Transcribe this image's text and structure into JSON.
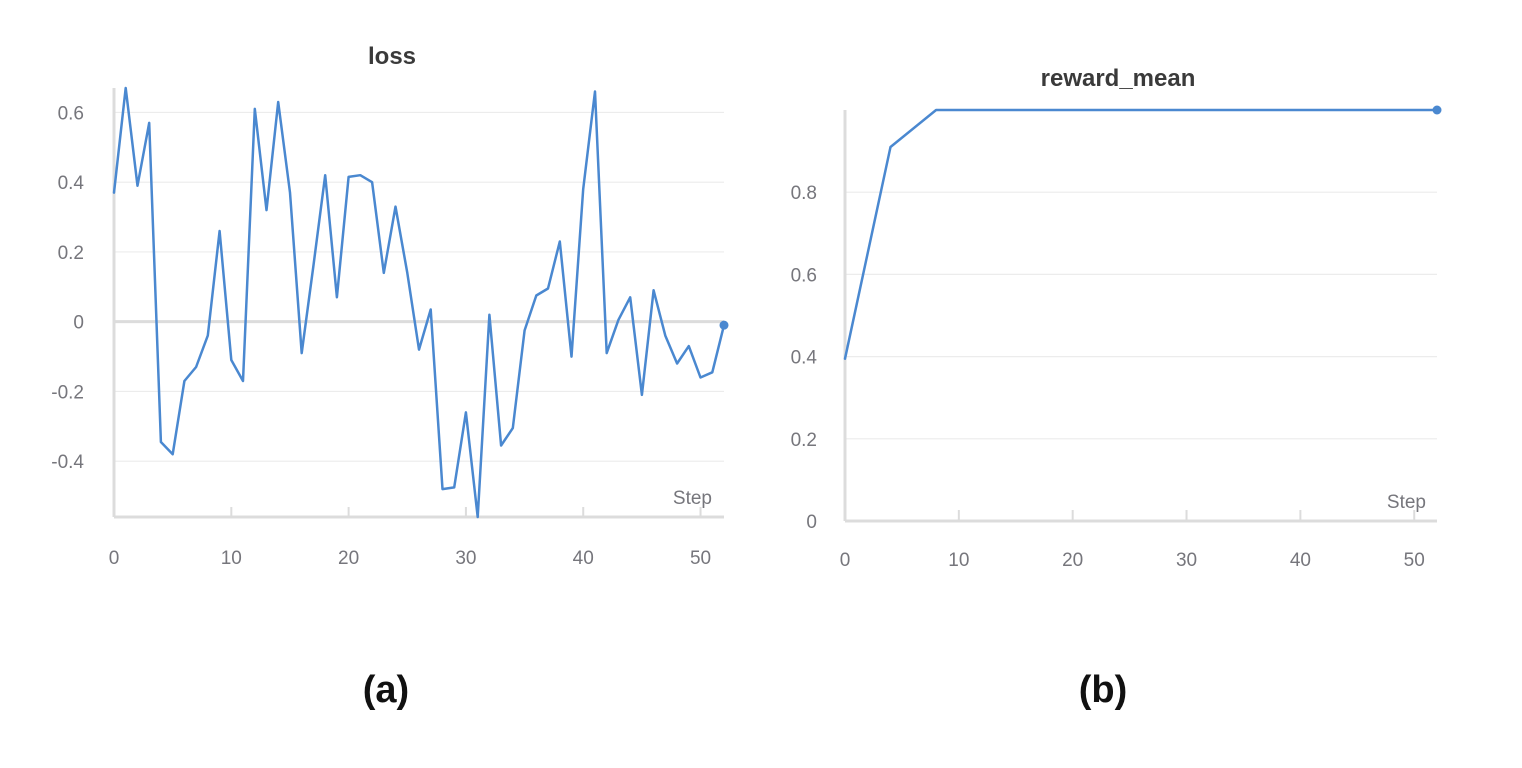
{
  "colors": {
    "series": "#4a88d0"
  },
  "panels": {
    "a": "(a)",
    "b": "(b)"
  },
  "chart_data": [
    {
      "type": "line",
      "title": "loss",
      "xlabel": "Step",
      "ylabel": "",
      "xlim": [
        0,
        52
      ],
      "ylim": [
        -0.56,
        0.67
      ],
      "xticks": [
        0,
        10,
        20,
        30,
        40,
        50
      ],
      "yticks": [
        0.6,
        0.4,
        0.2,
        0,
        -0.2,
        -0.4
      ],
      "ytick_labels": [
        "0.6",
        "0.4",
        "0.2",
        "0",
        "-0.2",
        "-0.4"
      ],
      "grid": true,
      "series": [
        {
          "x": [
            0,
            1,
            2,
            3,
            4,
            5,
            6,
            7,
            8,
            9,
            10,
            11,
            12,
            13,
            14,
            15,
            16,
            17,
            18,
            19,
            20,
            21,
            22,
            23,
            24,
            25,
            26,
            27,
            28,
            29,
            30,
            31,
            32,
            33,
            34,
            35,
            36,
            37,
            38,
            39,
            40,
            41,
            42,
            43,
            44,
            45,
            46,
            47,
            48,
            49,
            50,
            51,
            52
          ],
          "y": [
            0.37,
            0.67,
            0.39,
            0.57,
            -0.345,
            -0.38,
            -0.17,
            -0.13,
            -0.04,
            0.26,
            -0.11,
            -0.17,
            0.61,
            0.32,
            0.63,
            0.37,
            -0.09,
            0.16,
            0.42,
            0.07,
            0.415,
            0.42,
            0.4,
            0.14,
            0.33,
            0.14,
            -0.08,
            0.035,
            -0.48,
            -0.475,
            -0.26,
            -0.56,
            0.02,
            -0.355,
            -0.305,
            -0.025,
            0.075,
            0.095,
            0.23,
            -0.1,
            0.38,
            0.66,
            -0.09,
            0.005,
            0.07,
            -0.21,
            0.09,
            -0.04,
            -0.12,
            -0.07,
            -0.16,
            -0.145,
            -0.01
          ]
        }
      ]
    },
    {
      "type": "line",
      "title": "reward_mean",
      "xlabel": "Step",
      "ylabel": "",
      "xlim": [
        0,
        52
      ],
      "ylim": [
        0,
        1
      ],
      "xticks": [
        0,
        10,
        20,
        30,
        40,
        50
      ],
      "yticks": [
        0.8,
        0.6,
        0.4,
        0.2,
        0
      ],
      "ytick_labels": [
        "0.8",
        "0.6",
        "0.4",
        "0.2",
        "0"
      ],
      "grid": true,
      "series": [
        {
          "x": [
            0,
            4,
            8,
            52
          ],
          "y": [
            0.395,
            0.91,
            1.0,
            1.0
          ]
        }
      ]
    }
  ]
}
